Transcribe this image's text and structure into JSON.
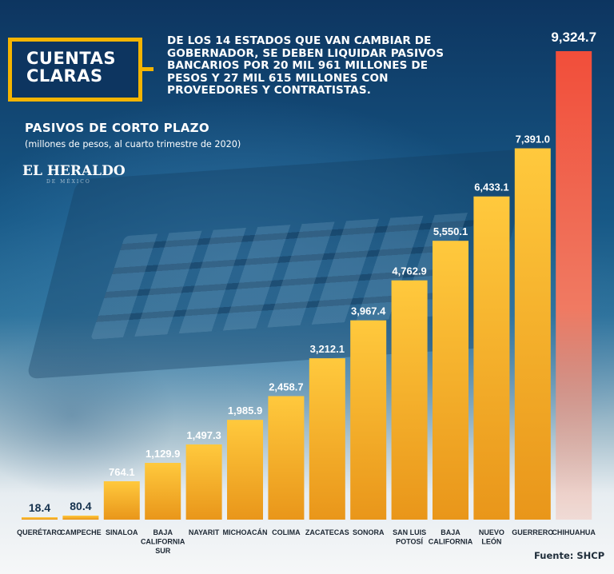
{
  "title": "CUENTAS CLARAS",
  "headline": "DE LOS 14 ESTADOS QUE VAN CAMBIAR DE GOBERNADOR, SE DEBEN LIQUIDAR PASIVOS BANCARIOS POR 20 MIL 961 MILLONES DE PESOS Y 27 MIL 615 MILLONES CON PROVEEDORES Y CONTRATISTAS.",
  "brand": "EL HERALDO",
  "brand_sub": "DE MÉXICO",
  "source": "Fuente: SHCP",
  "colors": {
    "bar_top": "#ffc93d",
    "bar_bottom": "#e9961a",
    "highlight_top": "#f14e3a",
    "highlight_bottom": "#f6b39e",
    "title_border": "#f4b400"
  },
  "chart_data": {
    "type": "bar",
    "title": "PASIVOS DE CORTO PLAZO",
    "subtitle": "(millones de pesos, al cuarto trimestre de 2020)",
    "categories": [
      [
        "QUERÉTARO"
      ],
      [
        "CAMPECHE"
      ],
      [
        "SINALOA"
      ],
      [
        "BAJA",
        "CALIFORNIA",
        "SUR"
      ],
      [
        "NAYARIT"
      ],
      [
        "MICHOACÁN"
      ],
      [
        "COLIMA"
      ],
      [
        "ZACATECAS"
      ],
      [
        "SONORA"
      ],
      [
        "SAN LUIS",
        "POTOSÍ"
      ],
      [
        "BAJA",
        "CALIFORNIA"
      ],
      [
        "NUEVO",
        "LEÓN"
      ],
      [
        "GUERRERO"
      ],
      [
        "CHIHUAHUA"
      ]
    ],
    "values": [
      18.4,
      80.4,
      764.1,
      1129.9,
      1497.3,
      1985.9,
      2458.7,
      3212.1,
      3967.4,
      4762.9,
      5550.1,
      6433.1,
      7391.0,
      9324.7
    ],
    "value_labels": [
      "18.4",
      "80.4",
      "764.1",
      "1,129.9",
      "1,497.3",
      "1,985.9",
      "2,458.7",
      "3,212.1",
      "3,967.4",
      "4,762.9",
      "5,550.1",
      "6,433.1",
      "7,391.0",
      "9,324.7"
    ],
    "highlight_index": 13,
    "xlabel": "",
    "ylabel": "",
    "ylim": [
      0,
      9324.7
    ]
  }
}
